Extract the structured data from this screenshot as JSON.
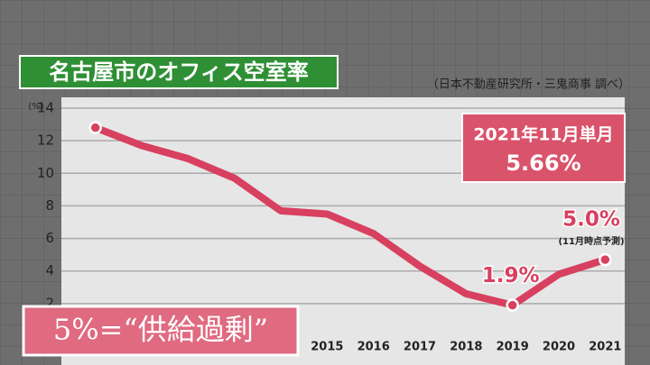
{
  "chart_data": {
    "type": "line",
    "title": "名古屋市のオフィス空室率",
    "source": "（日本不動産研究所・三鬼商事 調べ）",
    "y_unit": "(%)",
    "categories": [
      null,
      null,
      null,
      null,
      null,
      "2015",
      "2016",
      "2017",
      "2018",
      "2019",
      "2020",
      "2021"
    ],
    "series": [
      {
        "name": "オフィス空室率",
        "color": "#d8405f",
        "values": [
          12.8,
          11.7,
          10.9,
          9.7,
          7.7,
          7.5,
          6.3,
          4.3,
          2.6,
          1.9,
          3.8,
          4.7
        ],
        "value_labels": [
          null,
          null,
          null,
          null,
          null,
          null,
          null,
          null,
          null,
          "1.9%",
          null,
          null
        ]
      }
    ],
    "ylim": [
      0,
      14
    ],
    "yticks": [
      2,
      4,
      6,
      8,
      10,
      12,
      14
    ],
    "grid": true,
    "annotations": [
      "2021年11月単月",
      "5.66%",
      "5.0%",
      "(11月時点予測)",
      "5%=“供給過剰”"
    ]
  }
}
